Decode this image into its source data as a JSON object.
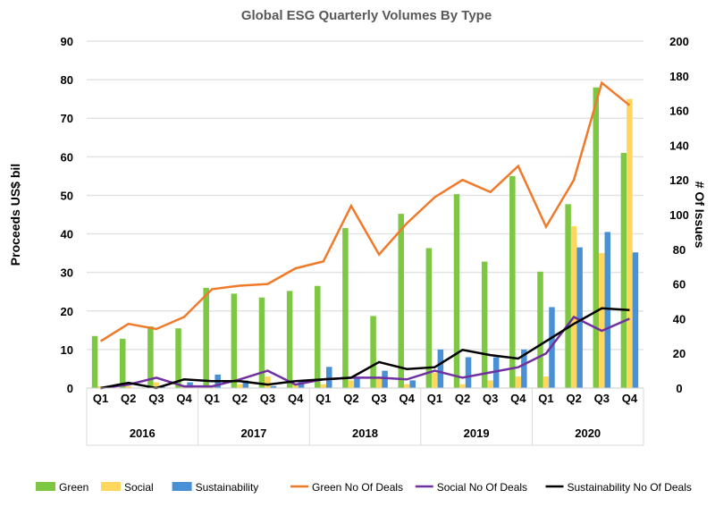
{
  "chart_data": {
    "type": "bar",
    "title": "Global ESG Quarterly Volumes By Type",
    "ylabel": "Proceeds US$ bil",
    "y2label": "# Of Issues",
    "ylim": [
      0,
      90
    ],
    "yticks": [
      0,
      10,
      20,
      30,
      40,
      50,
      60,
      70,
      80,
      90
    ],
    "y2lim": [
      0,
      200
    ],
    "y2ticks": [
      0,
      20,
      40,
      60,
      80,
      100,
      120,
      140,
      160,
      180,
      200
    ],
    "grid": true,
    "legend": "bottom",
    "years": [
      "2016",
      "2017",
      "2018",
      "2019",
      "2020"
    ],
    "quarters": [
      "Q1",
      "Q2",
      "Q3",
      "Q4"
    ],
    "bar_series": [
      {
        "name": "Green",
        "color": "#7dc743",
        "values": [
          13.5,
          12.8,
          16,
          15.5,
          26,
          24.5,
          23.5,
          25.2,
          26.5,
          41.5,
          18.7,
          45.2,
          36.3,
          50.3,
          32.8,
          55,
          30.2,
          47.7,
          78,
          61
        ]
      },
      {
        "name": "Social",
        "color": "#ffd75e",
        "values": [
          0.5,
          0.5,
          1.5,
          0.5,
          0.5,
          1,
          3,
          1,
          1,
          2,
          2.5,
          1,
          4,
          1,
          2,
          3,
          3,
          42,
          35,
          75
        ]
      },
      {
        "name": "Sustainability",
        "color": "#4a90d4",
        "values": [
          0,
          0,
          0.3,
          1.5,
          3.5,
          2,
          0.5,
          2,
          5.5,
          2.5,
          4.5,
          2,
          10,
          8,
          8,
          10,
          21,
          36.5,
          40.5,
          35.2
        ]
      }
    ],
    "line_series": [
      {
        "name": "Green No Of Deals",
        "color": "#f07a2a",
        "values": [
          27,
          37,
          34,
          41,
          57,
          59,
          60,
          69,
          73,
          105,
          77,
          95,
          110,
          120,
          113,
          128,
          93,
          120,
          176,
          163
        ]
      },
      {
        "name": "Social No Of Deals",
        "color": "#7030a0",
        "values": [
          0,
          2,
          6,
          1,
          1,
          5,
          10,
          2,
          5,
          6,
          6,
          5,
          10,
          6,
          9,
          12,
          20,
          41,
          33,
          40
        ]
      },
      {
        "name": "Sustainability No Of Deals",
        "color": "#000000",
        "values": [
          0,
          3,
          0,
          5,
          4,
          4,
          2,
          4,
          5,
          6,
          15,
          11,
          12,
          22,
          19,
          17,
          27,
          37,
          46,
          45
        ]
      }
    ]
  }
}
